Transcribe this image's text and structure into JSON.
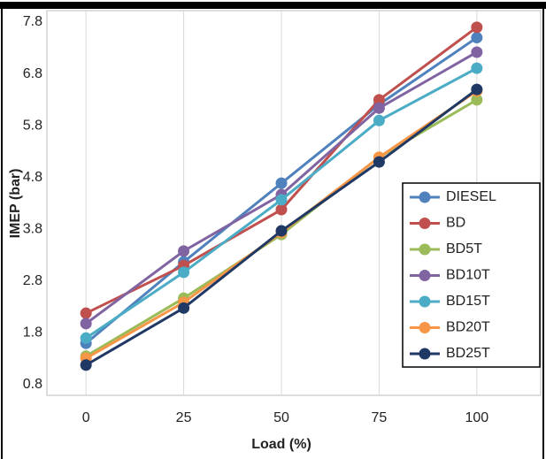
{
  "chart_data": {
    "type": "line",
    "x_label": "Load (%)",
    "y_label": "IMEP (bar)",
    "x": [
      0,
      25,
      50,
      75,
      100
    ],
    "xlim": [
      -10,
      110
    ],
    "xticks": [
      0,
      25,
      50,
      75,
      100
    ],
    "ylim": [
      0.8,
      7.8
    ],
    "yticks": [
      0.8,
      1.8,
      2.8,
      3.8,
      4.8,
      5.8,
      6.8,
      7.8
    ],
    "grid": "x",
    "legend": "right",
    "series": [
      {
        "name": "DIESEL",
        "color": "#4f81bd",
        "values": [
          1.6,
          3.17,
          4.69,
          6.21,
          7.5
        ]
      },
      {
        "name": "BD",
        "color": "#c0504d",
        "values": [
          2.18,
          3.1,
          4.18,
          6.3,
          7.7
        ]
      },
      {
        "name": "BD5T",
        "color": "#9bbb59",
        "values": [
          1.35,
          2.47,
          3.7,
          5.19,
          6.3
        ]
      },
      {
        "name": "BD10T",
        "color": "#8064a2",
        "values": [
          1.98,
          3.38,
          4.47,
          6.14,
          7.22
        ]
      },
      {
        "name": "BD15T",
        "color": "#4bacc6",
        "values": [
          1.7,
          2.97,
          4.37,
          5.9,
          6.91
        ]
      },
      {
        "name": "BD20T",
        "color": "#f79646",
        "values": [
          1.31,
          2.39,
          3.74,
          5.19,
          6.47
        ]
      },
      {
        "name": "BD25T",
        "color": "#1f3864",
        "values": [
          1.18,
          2.28,
          3.77,
          5.1,
          6.5
        ]
      }
    ]
  }
}
